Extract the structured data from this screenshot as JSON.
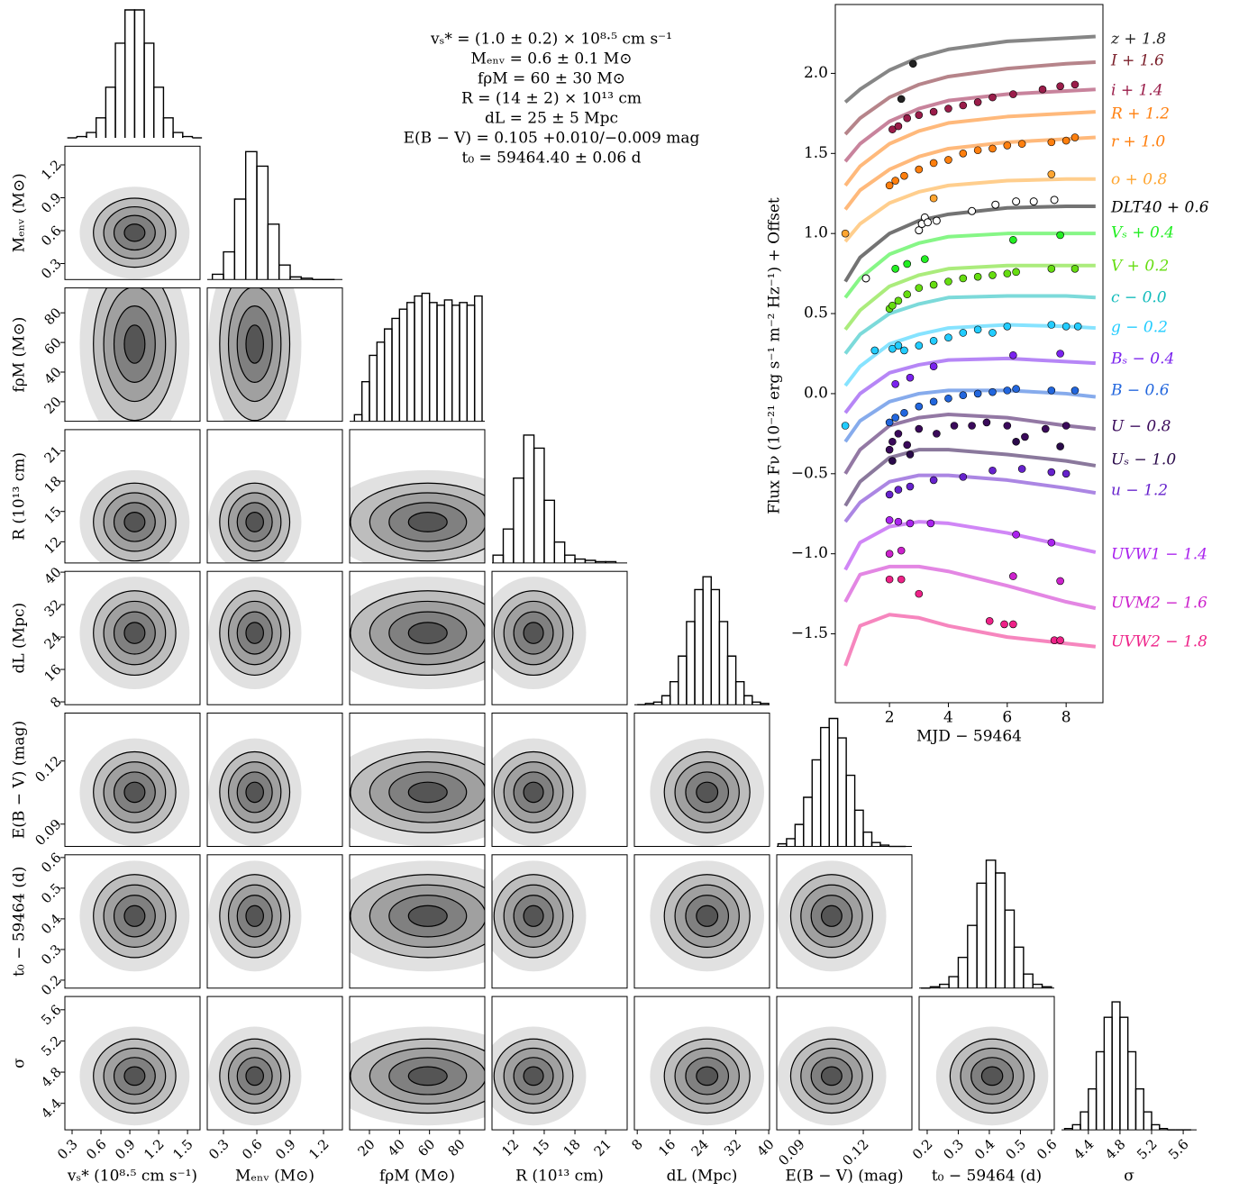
{
  "chart_data": [
    {
      "type": "corner",
      "results": [
        "vₛ* = (1.0 ± 0.2) × 10⁸·⁵ cm s⁻¹",
        "Mₑₙᵥ = 0.6 ± 0.1 M⊙",
        "fρM = 60 ± 30 M⊙",
        "R = (14 ± 2) × 10¹³ cm",
        "dL = 25 ± 5 Mpc",
        "E(B − V) = 0.105 +0.010/−0.009 mag",
        "t₀ = 59464.40 ± 0.06 d"
      ],
      "parameters": [
        {
          "label": "vₛ* (10⁸·⁵ cm s⁻¹)",
          "lim": [
            0.225,
            1.63
          ],
          "ticks": [
            0.3,
            0.6,
            0.9,
            1.2,
            1.5
          ],
          "bins": [
            0.25,
            0.35,
            0.45,
            0.55,
            0.65,
            0.75,
            0.85,
            0.95,
            1.05,
            1.15,
            1.25,
            1.35,
            1.45,
            1.55,
            1.65
          ],
          "counts": [
            0,
            1,
            4,
            15,
            38,
            71,
            96,
            96,
            71,
            38,
            15,
            4,
            1,
            0
          ]
        },
        {
          "label": "Mₑₙᵥ (M⊙)",
          "lim": [
            0.154,
            1.37
          ],
          "ticks": [
            0.3,
            0.6,
            0.9,
            1.2
          ],
          "bins": [
            0.2,
            0.3,
            0.4,
            0.5,
            0.6,
            0.7,
            0.8,
            0.9,
            1.0,
            1.1,
            1.2,
            1.3
          ],
          "counts": [
            4,
            21,
            61,
            97,
            86,
            42,
            11,
            2,
            1,
            0,
            0
          ]
        },
        {
          "label": "fρM (M⊙)",
          "lim": [
            6.8,
            96.8
          ],
          "ticks": [
            20,
            40,
            60,
            80
          ],
          "bins": [
            10,
            15,
            20,
            25,
            30,
            35,
            40,
            45,
            50,
            55,
            60,
            65,
            70,
            75,
            80,
            85,
            90,
            95
          ],
          "counts": [
            5,
            30,
            50,
            60,
            70,
            78,
            85,
            90,
            95,
            97,
            90,
            88,
            92,
            88,
            90,
            88,
            95
          ]
        },
        {
          "label": "R (10¹³ cm)",
          "lim": [
            9.9,
            23.1
          ],
          "ticks": [
            12,
            15,
            18,
            21
          ],
          "bins": [
            10,
            11,
            12,
            13,
            14,
            15,
            16,
            17,
            18,
            19,
            20,
            21,
            22
          ],
          "counts": [
            6,
            26,
            65,
            98,
            88,
            48,
            16,
            6,
            3,
            2,
            1,
            1
          ]
        },
        {
          "label": "dL (Mpc)",
          "lim": [
            7.3,
            40.2
          ],
          "ticks": [
            8,
            16,
            24,
            32,
            40
          ],
          "bins": [
            8,
            10,
            12,
            14,
            16,
            18,
            20,
            22,
            24,
            26,
            28,
            30,
            32,
            34,
            36,
            38,
            40
          ],
          "counts": [
            0,
            1,
            2,
            7,
            18,
            38,
            65,
            90,
            100,
            90,
            65,
            38,
            18,
            7,
            2,
            1
          ]
        },
        {
          "label": "E(B − V) (mag)",
          "lim": [
            0.0794,
            0.1428
          ],
          "ticks": [
            0.09,
            0.12
          ],
          "bins": [
            0.08,
            0.084,
            0.088,
            0.092,
            0.096,
            0.1,
            0.104,
            0.108,
            0.112,
            0.116,
            0.12,
            0.124,
            0.128,
            0.132,
            0.136,
            0.14
          ],
          "counts": [
            2,
            6,
            17,
            38,
            67,
            92,
            99,
            84,
            55,
            28,
            11,
            3,
            1,
            0,
            0
          ]
        },
        {
          "label": "t₀ − 59464 (d)",
          "lim": [
            0.174,
            0.609
          ],
          "ticks": [
            0.2,
            0.3,
            0.4,
            0.5,
            0.6
          ],
          "bins": [
            0.18,
            0.21,
            0.24,
            0.27,
            0.3,
            0.33,
            0.36,
            0.39,
            0.42,
            0.45,
            0.48,
            0.51,
            0.54,
            0.57,
            0.6
          ],
          "counts": [
            0,
            1,
            3,
            9,
            24,
            49,
            82,
            100,
            90,
            61,
            32,
            11,
            3,
            1
          ]
        },
        {
          "label": "σ",
          "lim": [
            4.06,
            5.77
          ],
          "ticks": [
            4.4,
            4.8,
            5.2,
            5.6
          ],
          "bins": [
            4.1,
            4.2,
            4.3,
            4.4,
            4.5,
            4.6,
            4.7,
            4.8,
            4.9,
            5.0,
            5.1,
            5.2,
            5.3,
            5.4,
            5.5,
            5.6,
            5.7
          ],
          "counts": [
            1,
            4,
            14,
            32,
            61,
            88,
            100,
            88,
            61,
            32,
            14,
            4,
            1,
            0,
            0,
            0
          ]
        }
      ]
    },
    {
      "type": "line",
      "x_label": "MJD − 59464",
      "y_label": "Flux Fν (10⁻²¹ erg s⁻¹ m⁻² Hz⁻¹) + Offset",
      "xlim": [
        0.16,
        9.25
      ],
      "ylim": [
        -1.93,
        2.43
      ],
      "xticks": [
        2,
        4,
        6,
        8
      ],
      "yticks": [
        {
          "value": 2,
          "label": "2.0"
        },
        {
          "value": 1.5,
          "label": "1.5"
        },
        {
          "value": 1,
          "label": "1.0"
        },
        {
          "value": 0.5,
          "label": "0.5"
        },
        {
          "value": 0,
          "label": "0.0"
        },
        {
          "value": -0.5,
          "label": "−0.5"
        },
        {
          "value": -1,
          "label": "−1.0"
        },
        {
          "value": -1.5,
          "label": "−1.5"
        }
      ],
      "model_x": [
        0.5,
        1,
        2,
        3,
        4,
        6,
        8,
        9
      ],
      "series": [
        {
          "name": "z + 1.8",
          "color": "#222222",
          "x": [
            2.4,
            2.8
          ],
          "values": [
            1.84,
            2.06
          ],
          "model": [
            1.82,
            1.9,
            2.02,
            2.1,
            2.15,
            2.2,
            2.22,
            2.23
          ]
        },
        {
          "name": "I + 1.6",
          "color": "#7a1f2a",
          "x": [],
          "values": [],
          "model": [
            1.62,
            1.72,
            1.85,
            1.93,
            1.98,
            2.03,
            2.06,
            2.07
          ]
        },
        {
          "name": "i + 1.4",
          "color": "#9a1d4a",
          "x": [
            2.1,
            2.3,
            2.6,
            3.0,
            3.5,
            4.0,
            4.5,
            5.0,
            5.5,
            6.2,
            7.2,
            7.8,
            8.3
          ],
          "values": [
            1.65,
            1.67,
            1.72,
            1.74,
            1.76,
            1.78,
            1.8,
            1.82,
            1.85,
            1.87,
            1.9,
            1.92,
            1.93
          ],
          "model": [
            1.45,
            1.56,
            1.7,
            1.78,
            1.83,
            1.87,
            1.89,
            1.9
          ]
        },
        {
          "name": "R + 1.2",
          "color": "#ff7f0e",
          "x": [],
          "values": [],
          "model": [
            1.3,
            1.42,
            1.56,
            1.64,
            1.69,
            1.73,
            1.75,
            1.76
          ]
        },
        {
          "name": "r + 1.0",
          "color": "#ff7f0e",
          "x": [
            2.0,
            2.2,
            2.5,
            3.0,
            3.5,
            4.0,
            4.5,
            5.0,
            5.5,
            6.0,
            6.5,
            7.5,
            8.0,
            8.3
          ],
          "values": [
            1.3,
            1.33,
            1.36,
            1.4,
            1.44,
            1.46,
            1.5,
            1.52,
            1.53,
            1.55,
            1.56,
            1.57,
            1.58,
            1.6
          ],
          "model": [
            1.15,
            1.27,
            1.4,
            1.48,
            1.53,
            1.57,
            1.59,
            1.6
          ]
        },
        {
          "name": "o + 0.8",
          "color": "#ffa530",
          "x": [
            0.5,
            3.5,
            7.5
          ],
          "values": [
            1.0,
            1.22,
            1.37
          ],
          "model": [
            0.95,
            1.06,
            1.19,
            1.26,
            1.3,
            1.33,
            1.34,
            1.34
          ]
        },
        {
          "name": "DLT40 + 0.6",
          "color": "#000000",
          "open": true,
          "x": [
            1.2,
            3.0,
            3.1,
            3.2,
            3.3,
            3.6,
            4.8,
            5.6,
            6.3,
            6.9,
            7.6
          ],
          "values": [
            0.72,
            1.02,
            1.06,
            1.1,
            1.07,
            1.08,
            1.14,
            1.18,
            1.2,
            1.2,
            1.21
          ],
          "model": [
            0.7,
            0.85,
            1.0,
            1.08,
            1.12,
            1.16,
            1.17,
            1.17
          ]
        },
        {
          "name": "Vₛ + 0.4",
          "color": "#22ee22",
          "x": [
            2.2,
            2.6,
            3.2,
            6.2,
            7.8
          ],
          "values": [
            0.78,
            0.81,
            0.84,
            0.96,
            0.99
          ],
          "model": [
            0.6,
            0.72,
            0.87,
            0.94,
            0.98,
            1.0,
            1.0,
            1.0
          ]
        },
        {
          "name": "V + 0.2",
          "color": "#66dd11",
          "x": [
            2.0,
            2.1,
            2.3,
            2.6,
            3.0,
            3.5,
            4.0,
            4.5,
            5.0,
            5.5,
            6.0,
            6.3,
            7.5,
            8.3
          ],
          "values": [
            0.53,
            0.55,
            0.58,
            0.62,
            0.66,
            0.68,
            0.7,
            0.72,
            0.73,
            0.74,
            0.75,
            0.76,
            0.78,
            0.78
          ],
          "model": [
            0.4,
            0.52,
            0.67,
            0.74,
            0.78,
            0.8,
            0.8,
            0.8
          ]
        },
        {
          "name": "c − 0.0",
          "color": "#11bbbb",
          "x": [],
          "values": [],
          "model": [
            0.25,
            0.37,
            0.5,
            0.56,
            0.6,
            0.61,
            0.61,
            0.6
          ]
        },
        {
          "name": "g − 0.2",
          "color": "#22ccff",
          "x": [
            0.5,
            1.5,
            2.1,
            2.3,
            2.5,
            3.0,
            3.5,
            4.0,
            4.5,
            5.0,
            5.5,
            6.0,
            7.5,
            8.0,
            8.4
          ],
          "values": [
            -0.2,
            0.27,
            0.28,
            0.3,
            0.27,
            0.3,
            0.33,
            0.35,
            0.38,
            0.4,
            0.38,
            0.42,
            0.43,
            0.42,
            0.42
          ],
          "model": [
            0.05,
            0.17,
            0.31,
            0.37,
            0.41,
            0.43,
            0.42,
            0.41
          ]
        },
        {
          "name": "Bₛ − 0.4",
          "color": "#7a22ee",
          "x": [
            2.2,
            2.7,
            3.5,
            6.2,
            7.8
          ],
          "values": [
            0.06,
            0.1,
            0.17,
            0.24,
            0.25
          ],
          "model": [
            -0.12,
            0.0,
            0.13,
            0.18,
            0.21,
            0.22,
            0.2,
            0.19
          ]
        },
        {
          "name": "B − 0.6",
          "color": "#2266dd",
          "x": [
            2.0,
            2.2,
            2.5,
            3.0,
            3.5,
            4.0,
            4.5,
            5.0,
            5.5,
            6.0,
            6.3,
            7.5,
            8.3
          ],
          "values": [
            -0.18,
            -0.15,
            -0.12,
            -0.08,
            -0.05,
            -0.03,
            -0.01,
            0.0,
            0.01,
            0.02,
            0.03,
            0.02,
            0.02
          ],
          "model": [
            -0.3,
            -0.17,
            -0.05,
            0.0,
            0.02,
            0.02,
            0.0,
            -0.02
          ]
        },
        {
          "name": "U − 0.8",
          "color": "#3a0a5a",
          "x": [
            2.0,
            2.1,
            2.3,
            2.6,
            3.0,
            3.6,
            4.2,
            4.8,
            5.3,
            6.0,
            6.6,
            7.3,
            8.0
          ],
          "values": [
            -0.35,
            -0.3,
            -0.25,
            -0.32,
            -0.22,
            -0.25,
            -0.2,
            -0.2,
            -0.18,
            -0.2,
            -0.27,
            -0.22,
            -0.2
          ],
          "model": [
            -0.5,
            -0.35,
            -0.2,
            -0.15,
            -0.13,
            -0.15,
            -0.2,
            -0.22
          ]
        },
        {
          "name": "Uₛ − 1.0",
          "color": "#2a0a4a",
          "x": [
            2.1,
            2.7,
            6.3,
            7.8
          ],
          "values": [
            -0.42,
            -0.38,
            -0.3,
            -0.33
          ],
          "model": [
            -0.7,
            -0.55,
            -0.4,
            -0.35,
            -0.35,
            -0.38,
            -0.42,
            -0.45
          ]
        },
        {
          "name": "u − 1.2",
          "color": "#6622cc",
          "x": [
            2.0,
            2.3,
            2.7,
            3.5,
            4.5,
            5.5,
            6.5,
            7.5,
            8.0
          ],
          "values": [
            -0.63,
            -0.6,
            -0.58,
            -0.54,
            -0.52,
            -0.48,
            -0.47,
            -0.49,
            -0.5
          ],
          "model": [
            -0.8,
            -0.68,
            -0.55,
            -0.51,
            -0.51,
            -0.54,
            -0.59,
            -0.62
          ]
        },
        {
          "name": "UVW1 − 1.4",
          "color": "#aa22ee",
          "x": [
            2.0,
            2.3,
            2.7,
            3.4,
            6.3,
            7.5
          ],
          "values": [
            -0.79,
            -0.8,
            -0.81,
            -0.81,
            -0.88,
            -0.93
          ],
          "model": [
            -1.1,
            -0.93,
            -0.83,
            -0.8,
            -0.81,
            -0.87,
            -0.95,
            -0.99
          ]
        },
        {
          "name": "UVM2 − 1.6",
          "color": "#cc22cc",
          "x": [
            2.0,
            2.4,
            6.2,
            7.8
          ],
          "values": [
            -1.0,
            -0.98,
            -1.14,
            -1.17
          ],
          "model": [
            -1.3,
            -1.13,
            -1.08,
            -1.08,
            -1.11,
            -1.2,
            -1.3,
            -1.34
          ]
        },
        {
          "name": "UVW2 − 1.8",
          "color": "#ee2288",
          "x": [
            2.0,
            2.4,
            3.0,
            5.4,
            5.9,
            6.2,
            7.6,
            7.8
          ],
          "values": [
            -1.16,
            -1.16,
            -1.25,
            -1.42,
            -1.44,
            -1.44,
            -1.54,
            -1.54
          ],
          "model": [
            -1.7,
            -1.45,
            -1.38,
            -1.4,
            -1.45,
            -1.52,
            -1.56,
            -1.58
          ]
        }
      ]
    }
  ]
}
